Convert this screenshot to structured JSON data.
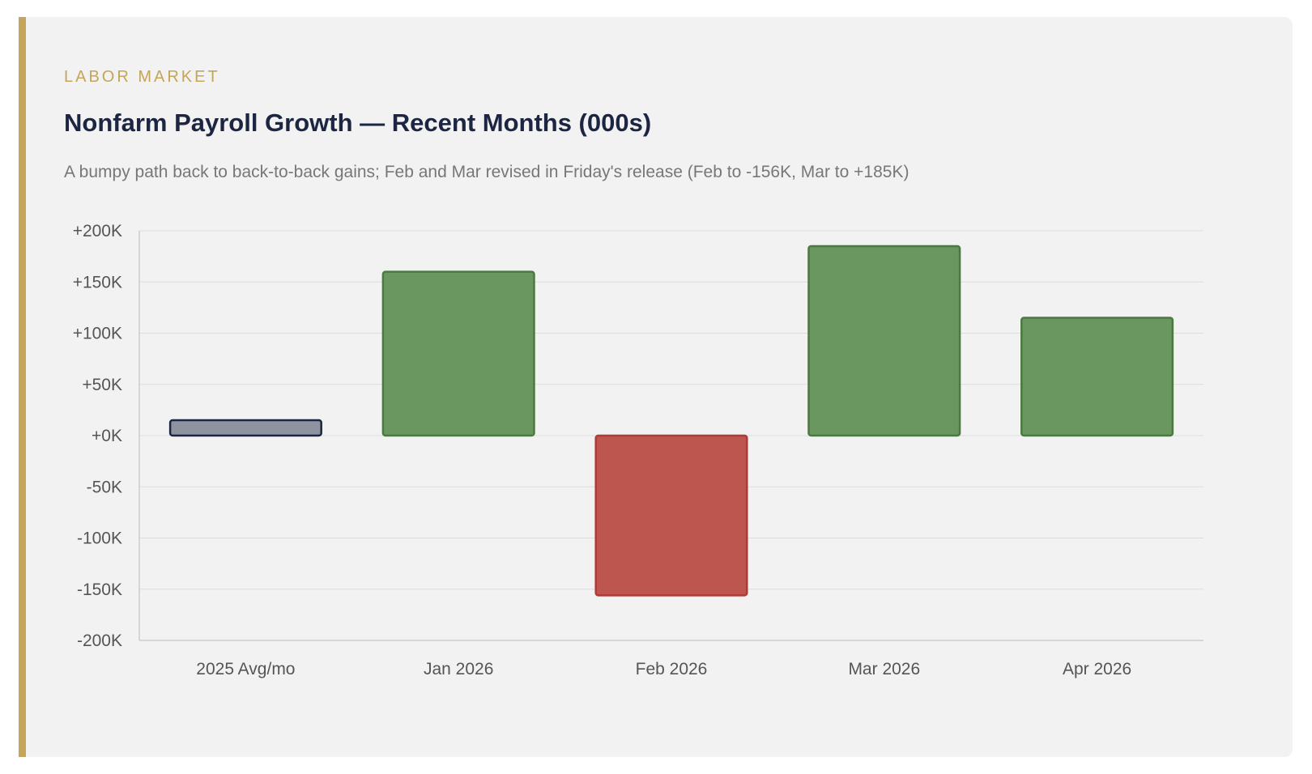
{
  "card": {
    "kicker": "LABOR MARKET",
    "title": "Nonfarm Payroll Growth — Recent Months (000s)",
    "subtitle": "A bumpy path back to back-to-back gains; Feb and Mar revised in Friday's release (Feb to -156K, Mar to +185K)"
  },
  "colors": {
    "accent": "#c4a55a",
    "title": "#1c2541",
    "positive_fill": "#6a9660",
    "positive_stroke": "#4a7a40",
    "negative_fill": "#be5650",
    "negative_stroke": "#b03a34",
    "baseline_fill": "#8e93a0",
    "baseline_stroke": "#1c2541",
    "grid": "#dddddd",
    "axis": "#cccccc"
  },
  "chart_data": {
    "type": "bar",
    "categories": [
      "2025 Avg/mo",
      "Jan 2026",
      "Feb 2026",
      "Mar 2026",
      "Apr 2026"
    ],
    "values": [
      15,
      160,
      -156,
      185,
      115
    ],
    "ylim": [
      -200,
      200
    ],
    "yticks": [
      200,
      150,
      100,
      50,
      0,
      -50,
      -100,
      -150,
      -200
    ],
    "ytick_labels": [
      "+200K",
      "+150K",
      "+100K",
      "+50K",
      "+0K",
      "-50K",
      "-100K",
      "-150K",
      "-200K"
    ],
    "grid": true,
    "title": "Nonfarm Payroll Growth — Recent Months (000s)",
    "xlabel": "",
    "ylabel": ""
  }
}
